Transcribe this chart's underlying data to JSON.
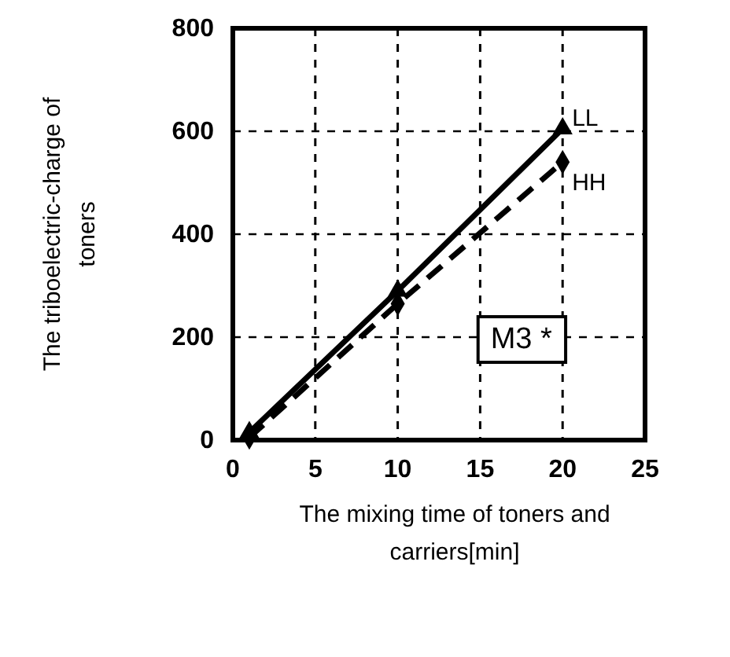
{
  "chart_data": {
    "type": "line",
    "xlabel": "The mixing time of toners and carriers[min]",
    "ylabel": "The triboelectric-charge of toners",
    "xlim": [
      0,
      25
    ],
    "ylim": [
      0,
      800
    ],
    "xticks": [
      0,
      5,
      10,
      15,
      20,
      25
    ],
    "yticks": [
      0,
      200,
      400,
      600,
      800
    ],
    "grid": true,
    "series": [
      {
        "name": "LL",
        "color": "#000000",
        "line_style": "solid",
        "marker": "triangle",
        "x": [
          1,
          10,
          20
        ],
        "values": [
          15,
          290,
          605
        ]
      },
      {
        "name": "HH",
        "color": "#000000",
        "line_style": "dashed",
        "marker": "diamond",
        "x": [
          1,
          10,
          20
        ],
        "values": [
          5,
          265,
          540
        ]
      }
    ],
    "annotations": [
      "M3 *"
    ]
  }
}
